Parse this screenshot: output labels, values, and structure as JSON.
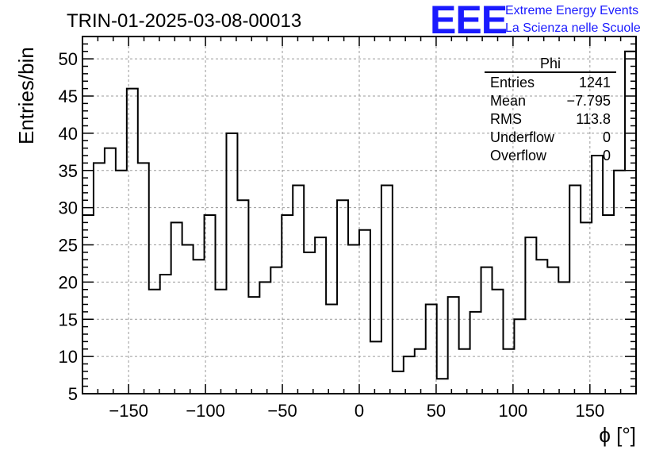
{
  "chart_data": {
    "type": "histogram",
    "title": "TRIN-01-2025-03-08-00013",
    "xlabel": "ϕ [°]",
    "ylabel": "Entries/bin",
    "xlim": [
      -180,
      180
    ],
    "ylim": [
      5,
      53
    ],
    "grid": true,
    "bin_width": 7.2,
    "x_ticks": [
      -150,
      -100,
      -50,
      0,
      50,
      100,
      150
    ],
    "x_tick_labels": [
      "−150",
      "−100",
      "−50",
      "0",
      "50",
      "100",
      "150"
    ],
    "y_ticks": [
      5,
      10,
      15,
      20,
      25,
      30,
      35,
      40,
      45,
      50
    ],
    "y_tick_labels": [
      "5",
      "10",
      "15",
      "20",
      "25",
      "30",
      "35",
      "40",
      "45",
      "50"
    ],
    "values": [
      29,
      36,
      38,
      35,
      46,
      36,
      19,
      21,
      28,
      25,
      23,
      29,
      19,
      40,
      31,
      18,
      20,
      22,
      29,
      33,
      24,
      26,
      17,
      31,
      25,
      27,
      12,
      33,
      8,
      10,
      11,
      17,
      7,
      18,
      11,
      16,
      22,
      19,
      11,
      15,
      26,
      23,
      22,
      20,
      33,
      28,
      37,
      29,
      35,
      51
    ],
    "stats_box": {
      "name": "Phi",
      "rows": [
        {
          "label": "Entries",
          "value": "1241"
        },
        {
          "label": "Mean",
          "value": "−7.795"
        },
        {
          "label": "RMS",
          "value": "113.8"
        },
        {
          "label": "Underflow",
          "value": "0"
        },
        {
          "label": "Overflow",
          "value": "0"
        }
      ]
    }
  },
  "logo": {
    "mark": "EEE",
    "line1": "Extreme Energy Events",
    "line2": "La Scienza nelle Scuole"
  },
  "colors": {
    "line": "#000000",
    "grid": "#9a9a9a",
    "logo": "#1a1aff"
  }
}
